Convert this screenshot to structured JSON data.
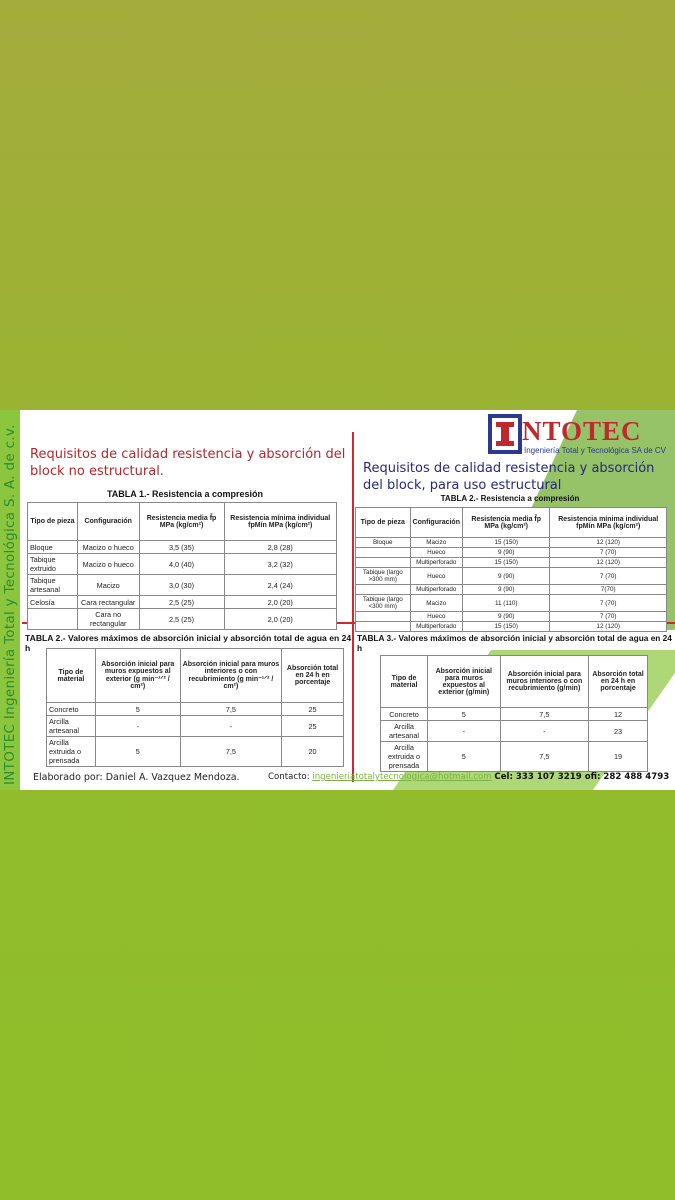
{
  "side_text": "INTOTEC Ingeniería Total y Tecnológica S. A. de c.v.",
  "logo": {
    "name": "NTOTEC",
    "tagline": "Ingeniería Total y Tecnológica SA de CV",
    "colors": {
      "red": "#c0282d",
      "blue": "#2b3a8c"
    }
  },
  "left": {
    "title": "Requisitos de calidad resistencia y absorción del block no estructural.",
    "table1": {
      "caption": "TABLA 1.- Resistencia a compresión",
      "headers": [
        "Tipo de pieza",
        "Configuración",
        "Resistencia media f̄p MPa (kg/cm²)",
        "Resistencia mínima individual fpMín MPa (kg/cm²)"
      ],
      "rows": [
        [
          "Bloque",
          "Macizo o hueco",
          "3,5 (35)",
          "2,8 (28)"
        ],
        [
          "Tabique extruido",
          "Macizo o hueco",
          "4,0 (40)",
          "3,2 (32)"
        ],
        [
          "Tabique artesanal",
          "Macizo",
          "3,0 (30)",
          "2,4 (24)"
        ],
        [
          "Celosía",
          "Cara rectangular",
          "2,5 (25)",
          "2,0 (20)"
        ],
        [
          "",
          "Cara no rectangular",
          "2,5 (25)",
          "2,0 (20)"
        ]
      ]
    },
    "table2": {
      "caption": "TABLA 2.- Valores máximos de absorción inicial y absorción total de agua en 24 h",
      "headers": [
        "Tipo de material",
        "Absorción inicial para muros expuestos al exterior (g min⁻¹ᐟ² / cm²)",
        "Absorción inicial para muros interiores o con recubrimiento (g min⁻¹ᐟ² / cm²)",
        "Absorción total en 24 h en porcentaje"
      ],
      "rows": [
        [
          "Concreto",
          "5",
          "7,5",
          "25"
        ],
        [
          "Arcilla artesanal",
          "-",
          "-",
          "25"
        ],
        [
          "Arcilla extruida o prensada",
          "5",
          "7,5",
          "20"
        ]
      ]
    }
  },
  "right": {
    "title": "Requisitos de calidad resistencia y absorción del block, para uso  estructural",
    "table2": {
      "caption": "TABLA 2.- Resistencia a compresión",
      "headers": [
        "Tipo de pieza",
        "Configuración",
        "Resistencia media f̄p MPa (kg/cm²)",
        "Resistencia mínima individual fpMín MPa (kg/cm²)"
      ],
      "rows": [
        [
          "Bloque",
          "Macizo",
          "15 (150)",
          "12 (120)"
        ],
        [
          "",
          "Hueco",
          "9 (90)",
          "7 (70)"
        ],
        [
          "",
          "Multiperforado",
          "15 (150)",
          "12 (120)"
        ],
        [
          "Tabique (largo >300 mm)",
          "Hueco",
          "9 (90)",
          "7 (70)"
        ],
        [
          "",
          "Multiperforado",
          "9 (90)",
          "7(70)"
        ],
        [
          "Tabique (largo <300 mm)",
          "Macizo",
          "11 (110)",
          "7 (70)"
        ],
        [
          "",
          "Hueco",
          "9 (90)",
          "7 (70)"
        ],
        [
          "",
          "Multiperforado",
          "15 (150)",
          "12 (120)"
        ]
      ]
    },
    "table3": {
      "caption": "TABLA 3.- Valores máximos de absorción inicial y absorción total de agua en 24 h",
      "headers": [
        "Tipo de material",
        "Absorción inicial para muros expuestos al exterior (g/min)",
        "Absorción inicial para muros interiores o con recubrimiento (g/min)",
        "Absorción total en 24 h en porcentaje"
      ],
      "rows": [
        [
          "Concreto",
          "5",
          "7,5",
          "12"
        ],
        [
          "Arcilla artesanal",
          "-",
          "-",
          "23"
        ],
        [
          "Arcilla extruida o prensada",
          "5",
          "7,5",
          "19"
        ]
      ]
    }
  },
  "footer": {
    "author": "Elaborado por: Daniel A. Vazquez Mendoza.",
    "contact_label": "Contacto:",
    "email": "ingenieriatotalytecnologica@hotmail.com",
    "phones": "Cel: 333 107 3219 ofi: 282 488 4793"
  }
}
